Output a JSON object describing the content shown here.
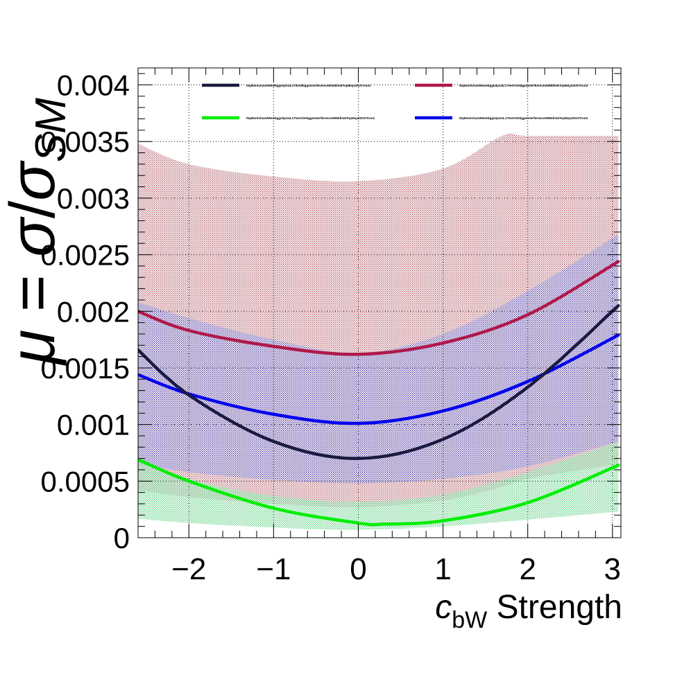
{
  "chart_data": {
    "type": "line",
    "ylabel_parts": {
      "mu": "μ",
      "eq": " = ",
      "sigma": "σ",
      "slash": "/",
      "sigma2": "σ",
      "sub": "SM"
    },
    "xlabel_parts": {
      "c": "c",
      "sub": "bW",
      "rest": " Strength"
    },
    "xlim": [
      -2.6,
      3.1
    ],
    "ylim": [
      0,
      0.00415
    ],
    "x_ticks": [
      -2,
      -1,
      0,
      1,
      2,
      3
    ],
    "x_tick_labels": [
      "−2",
      "−1",
      "0",
      "1",
      "2",
      "3"
    ],
    "y_ticks": [
      0,
      0.0005,
      0.001,
      0.0015,
      0.002,
      0.0025,
      0.003,
      0.0035,
      0.004
    ],
    "y_tick_labels": [
      "0",
      "0.0005",
      "0.001",
      "0.0015",
      "0.002",
      "0.0025",
      "0.003",
      "0.0035",
      "0.004"
    ],
    "grid": true,
    "legend_placement": "top",
    "series": [
      {
        "name": "ttq4NoSchanWNoHiggs0p1UL17testHiggsInterferenceWtMdim6TopMay20GSTrun1",
        "color": "#1a1a40",
        "curve": {
          "x": [
            -2.6,
            -2,
            -1,
            0,
            1,
            2,
            3.07
          ],
          "y": [
            0.00166,
            0.00126,
            0.00085,
            0.0007,
            0.00087,
            0.00133,
            0.00205
          ]
        },
        "band": null
      },
      {
        "name": "ttq4NoSchanWNoHiggs0p1UL17testV2HiggsInterferenceWtMdim6TopMay20GSTrun3",
        "color": "#b0184a",
        "band_color": "#9b2a3a",
        "curve": {
          "x": [
            -2.6,
            -2,
            -1,
            0,
            1,
            2,
            3.07
          ],
          "y": [
            0.002,
            0.00183,
            0.00169,
            0.00162,
            0.00172,
            0.00197,
            0.00244
          ]
        },
        "band": {
          "x": [
            -2.6,
            -2,
            -1,
            0,
            1,
            1.7,
            2,
            3.07
          ],
          "upper": [
            0.00348,
            0.0033,
            0.00319,
            0.00315,
            0.00326,
            0.00355,
            0.00355,
            0.00355
          ],
          "lower": [
            0.00042,
            0.00036,
            0.0003,
            0.00027,
            0.00033,
            0.00045,
            0.00052,
            0.00065
          ]
        }
      },
      {
        "name": "ttq4NoSchanWNoHiggs0p1UL17testV2HiggsInterferenceWtMdim6TopMay20GSTrun1",
        "color": "#00ee00",
        "band_color": "#22c055",
        "curve": {
          "x": [
            -2.6,
            -2,
            -1,
            0,
            0.3,
            1,
            2,
            3.07
          ],
          "y": [
            0.00069,
            0.0005,
            0.00026,
            0.00013,
            0.00012,
            0.00015,
            0.00031,
            0.00064
          ]
        },
        "band": {
          "x": [
            -2.6,
            -2,
            -1,
            0,
            1,
            2,
            3.07
          ],
          "upper": [
            0.00068,
            0.00052,
            0.00037,
            0.00032,
            0.00038,
            0.00058,
            0.00085
          ],
          "lower": [
            0.00017,
            0.00013,
            9e-05,
            7e-05,
            0.0001,
            0.00016,
            0.00023
          ]
        }
      },
      {
        "name": "ttq4NoSchanWNoHiggs0p1UL17testV2HiggsInterferenceWtMdim6TopMay20GSTrun2",
        "color": "#0000ee",
        "band_color": "#2e2eb0",
        "curve": {
          "x": [
            -2.6,
            -2,
            -1,
            0,
            1,
            2,
            3.07
          ],
          "y": [
            0.00144,
            0.00127,
            0.00109,
            0.00101,
            0.00112,
            0.00138,
            0.00179
          ]
        },
        "band": {
          "x": [
            -2.6,
            -2,
            -1,
            0,
            1,
            2,
            3.07
          ],
          "upper": [
            0.00208,
            0.00194,
            0.00175,
            0.00163,
            0.0018,
            0.00218,
            0.00268
          ],
          "lower": [
            0.00065,
            0.00058,
            0.00051,
            0.00048,
            0.00052,
            0.00063,
            0.00085
          ]
        }
      }
    ]
  }
}
